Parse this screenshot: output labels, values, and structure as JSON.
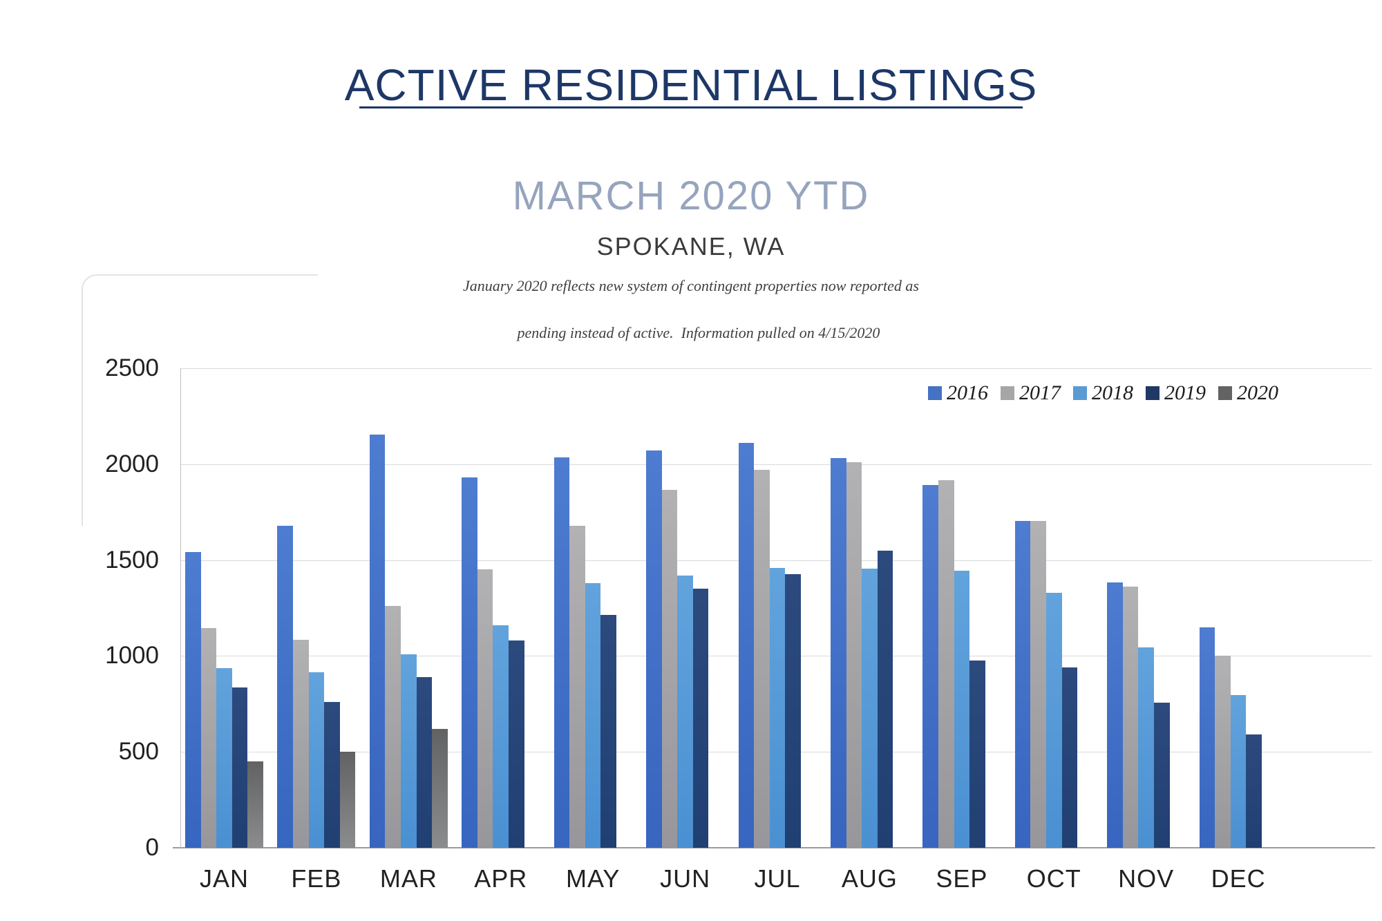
{
  "header": {
    "title": "ACTIVE RESIDENTIAL LISTINGS",
    "subtitle": "MARCH 2020 YTD",
    "location": "SPOKANE, WA",
    "note_line1": "January 2020 reflects new system of contingent properties now reported as",
    "note_line2": "pending instead of active.  Information pulled on 4/15/2020"
  },
  "colors": {
    "title_navy": "#1d3767",
    "subtitle_gray_blue": "#96a4bd",
    "gridline": "#d8dadc",
    "baseline": "#9b9b9b"
  },
  "chart_data": {
    "type": "bar",
    "title": "ACTIVE RESIDENTIAL LISTINGS",
    "subtitle": "MARCH 2020 YTD",
    "xlabel": "",
    "ylabel": "",
    "ylim": [
      0,
      2500
    ],
    "yticks": [
      0,
      500,
      1000,
      1500,
      2000,
      2500
    ],
    "grid": true,
    "legend_position": "top-right",
    "categories": [
      "JAN",
      "FEB",
      "MAR",
      "APR",
      "MAY",
      "JUN",
      "JUL",
      "AUG",
      "SEP",
      "OCT",
      "NOV",
      "DEC"
    ],
    "series": [
      {
        "name": "2016",
        "legend_color": "#4472C4",
        "color_top": "#4e7cd0",
        "color_bottom": "#3765bf",
        "values": [
          1540,
          1680,
          2155,
          1930,
          2035,
          2070,
          2110,
          2030,
          1890,
          1705,
          1385,
          1150
        ]
      },
      {
        "name": "2017",
        "legend_color": "#A6A6A6",
        "color_top": "#b2b2b4",
        "color_bottom": "#97979b",
        "values": [
          1145,
          1085,
          1260,
          1450,
          1680,
          1865,
          1970,
          2010,
          1915,
          1705,
          1360,
          1000
        ]
      },
      {
        "name": "2018",
        "legend_color": "#5B9BD5",
        "color_top": "#62a3dc",
        "color_bottom": "#4a90d2",
        "values": [
          935,
          915,
          1010,
          1160,
          1380,
          1420,
          1460,
          1455,
          1445,
          1330,
          1045,
          795
        ]
      },
      {
        "name": "2019",
        "legend_color": "#1F3864",
        "color_top": "#2c4a7e",
        "color_bottom": "#203f72",
        "values": [
          835,
          760,
          890,
          1080,
          1215,
          1350,
          1425,
          1550,
          975,
          940,
          755,
          590
        ]
      },
      {
        "name": "2020",
        "legend_color": "#636363",
        "color_top": "#616264",
        "color_bottom": "#8b8c8e",
        "values": [
          450,
          500,
          620,
          null,
          null,
          null,
          null,
          null,
          null,
          null,
          null,
          null
        ]
      }
    ]
  }
}
